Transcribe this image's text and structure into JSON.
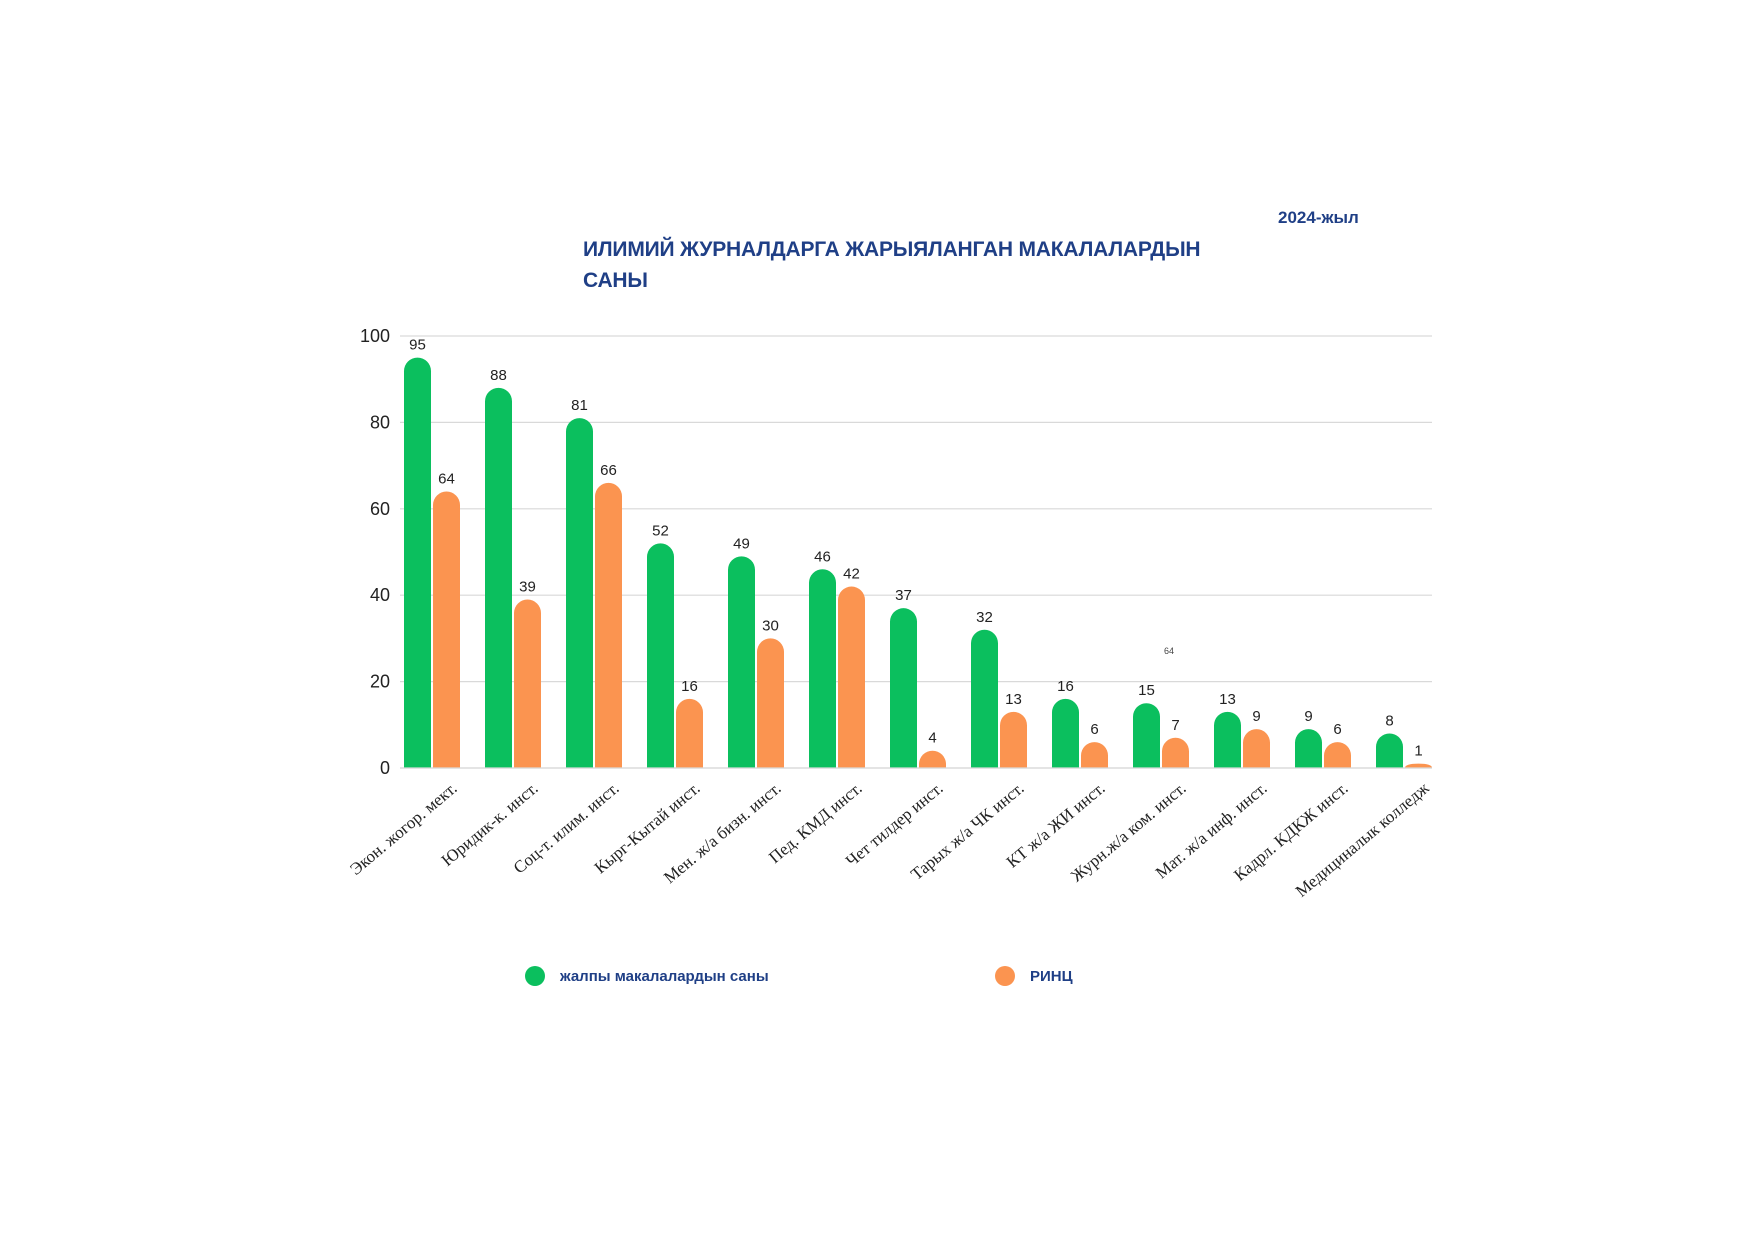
{
  "year_label": "2024-жыл",
  "title": "ИЛИМИЙ   ЖУРНАЛДАРГА ЖАРЫЯЛАНГАН   МАКАЛАЛАРДЫН\nСАНЫ",
  "stray_label": "64",
  "colors": {
    "series_total": "#0bbf5e",
    "series_rinc": "#fb9450",
    "title": "#1f3f86",
    "grid": "#d9d9d9",
    "text": "#222222"
  },
  "legend": [
    {
      "label": "жалпы макалалардын саны",
      "color": "#0bbf5e"
    },
    {
      "label": "РИНЦ",
      "color": "#fb9450"
    }
  ],
  "chart_data": {
    "type": "bar",
    "title": "ИЛИМИЙ   ЖУРНАЛДАРГА ЖАРЫЯЛАНГАН   МАКАЛАЛАРДЫН САНЫ",
    "categories": [
      "Экон. жогор. мект.",
      "Юридик-к. инст.",
      "Соц-т. илим. инст.",
      "Кырг-Кытай инст.",
      "Мен. ж/а бизн. инст.",
      "Пед. КМД инст.",
      "Чет тилдер инст.",
      "Тарых ж/а ЧК инст.",
      "КТ ж/а ЖИ инст.",
      "Журн.ж/а ком. инст.",
      "Мат. ж/а инф. инст.",
      "Кадрл. КДКЖ инст.",
      "Медициналык колледж"
    ],
    "series": [
      {
        "name": "жалпы макалалардын саны",
        "values": [
          95,
          88,
          81,
          52,
          49,
          46,
          37,
          32,
          16,
          15,
          13,
          9,
          8
        ]
      },
      {
        "name": "РИНЦ",
        "values": [
          64,
          39,
          66,
          16,
          30,
          42,
          4,
          13,
          6,
          7,
          9,
          6,
          1
        ]
      }
    ],
    "ylim": [
      0,
      100
    ],
    "yticks": [
      "0",
      "20",
      "40",
      "60",
      "80",
      "100"
    ],
    "grid": true,
    "legend_position": "bottom"
  }
}
